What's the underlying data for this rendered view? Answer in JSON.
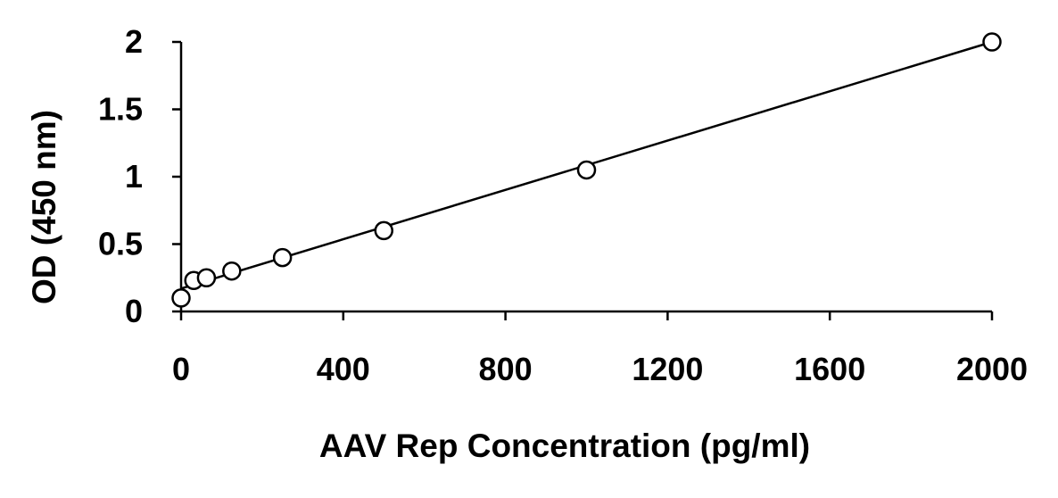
{
  "chart_data": {
    "type": "scatter",
    "title": "",
    "xlabel": "AAV Rep Concentration (pg/ml)",
    "ylabel": "OD (450 nm)",
    "xlim": [
      0,
      2000
    ],
    "ylim": [
      0,
      2
    ],
    "x_ticks": [
      0,
      400,
      800,
      1200,
      1600,
      2000
    ],
    "x_tick_labels": [
      "0",
      "400",
      "800",
      "1200",
      "1600",
      "2000"
    ],
    "y_ticks": [
      0,
      0.5,
      1,
      1.5,
      2
    ],
    "y_tick_labels": [
      "0",
      "0.5",
      "1",
      "1.5",
      "2"
    ],
    "grid": false,
    "legend": "none",
    "series": [
      {
        "marker": "open-circle",
        "x": [
          0,
          31.25,
          62.5,
          125,
          250,
          500,
          1000,
          2000
        ],
        "y": [
          0.1,
          0.23,
          0.25,
          0.3,
          0.4,
          0.6,
          1.05,
          2.0
        ]
      }
    ],
    "trendline": {
      "x": [
        0,
        2000
      ],
      "y": [
        0.17,
        2.0
      ]
    },
    "colors": {
      "line": "#000000",
      "marker_stroke": "#000000",
      "marker_fill": "#ffffff"
    }
  }
}
